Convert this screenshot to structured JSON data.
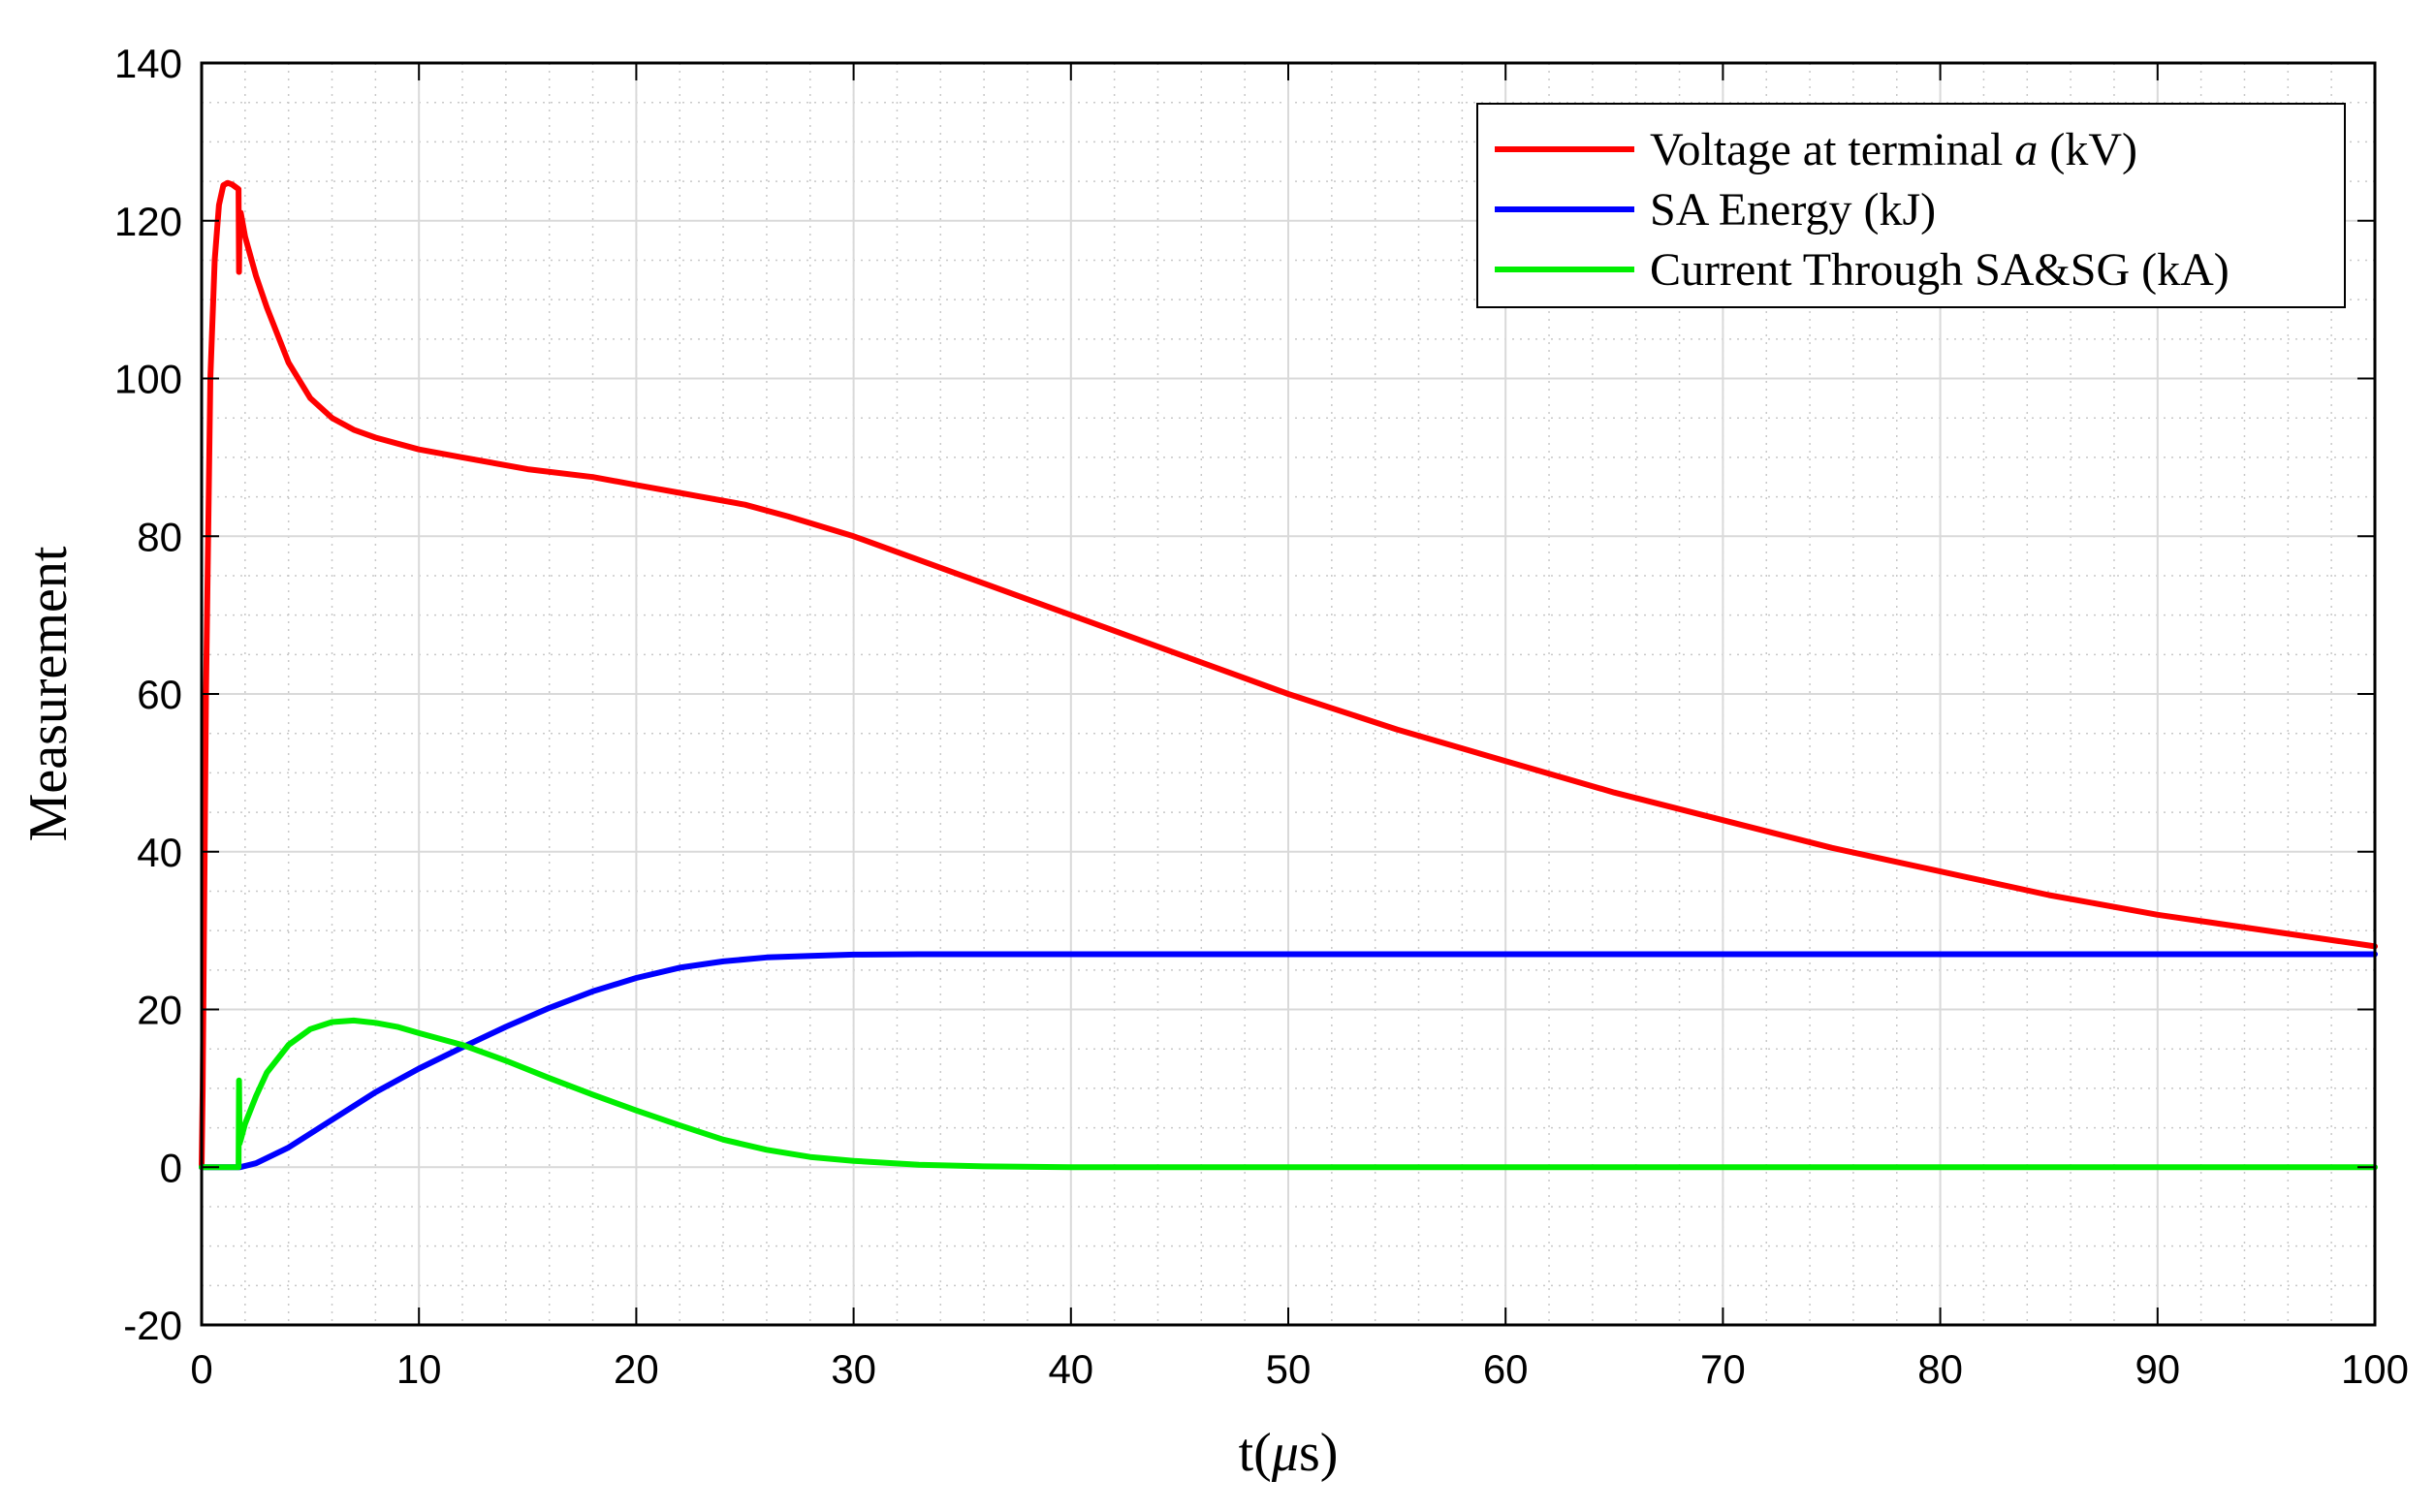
{
  "chart_data": {
    "type": "line",
    "xlabel": "t(μs)",
    "xlabel_parts": {
      "prefix": "t(",
      "mu": "μ",
      "suffix": "s)"
    },
    "ylabel": "Measurement",
    "xlim": [
      0,
      100
    ],
    "ylim": [
      -20,
      140
    ],
    "xticks": [
      0,
      10,
      20,
      30,
      40,
      50,
      60,
      70,
      80,
      90,
      100
    ],
    "yticks": [
      -20,
      0,
      20,
      40,
      60,
      80,
      100,
      120,
      140
    ],
    "grid": true,
    "minor_grid": true,
    "legend_position": "top-right",
    "series": [
      {
        "name": "Voltage at terminal a (kV)",
        "name_parts": {
          "prefix": "Voltage at terminal ",
          "italic": "a",
          "suffix": " (kV)"
        },
        "color": "#ff0000",
        "x": [
          0,
          0.05,
          0.2,
          0.4,
          0.6,
          0.8,
          1.0,
          1.2,
          1.4,
          1.6,
          1.7,
          1.72,
          1.75,
          1.8,
          2.0,
          2.5,
          3,
          4,
          5,
          6,
          7,
          8,
          10,
          12,
          15,
          18,
          20,
          22,
          25,
          27,
          30,
          35,
          40,
          45,
          50,
          55,
          60,
          65,
          70,
          75,
          80,
          85,
          90,
          95,
          100
        ],
        "y": [
          0,
          10,
          60,
          100,
          115,
          122,
          124.5,
          124.8,
          124.6,
          124.2,
          124,
          113.5,
          121,
          121,
          118,
          113,
          109,
          102,
          97.5,
          95,
          93.5,
          92.5,
          91,
          90,
          88.5,
          87.5,
          86.5,
          85.5,
          84,
          82.5,
          80,
          75,
          70,
          65,
          60,
          55.5,
          51.5,
          47.5,
          44,
          40.5,
          37.5,
          34.5,
          32,
          30,
          28
        ]
      },
      {
        "name": "SA Energy (kJ)",
        "color": "#0000ff",
        "x": [
          0,
          1.75,
          2.5,
          4,
          6,
          8,
          10,
          12,
          14,
          16,
          18,
          20,
          22,
          24,
          26,
          28,
          30,
          33,
          36,
          40,
          50,
          60,
          70,
          80,
          90,
          100
        ],
        "y": [
          0,
          0,
          0.5,
          2.5,
          6,
          9.5,
          12.5,
          15.2,
          17.8,
          20.2,
          22.3,
          24,
          25.3,
          26.1,
          26.6,
          26.8,
          26.95,
          27,
          27,
          27,
          27,
          27,
          27,
          27,
          27,
          27
        ]
      },
      {
        "name": "Current Through SA&SG (kA)",
        "color": "#00ee00",
        "x": [
          0,
          1.7,
          1.72,
          1.75,
          1.8,
          2.0,
          2.5,
          3,
          4,
          5,
          6,
          7,
          8,
          9,
          10,
          12,
          14,
          16,
          18,
          20,
          22,
          24,
          26,
          28,
          30,
          33,
          36,
          40,
          50,
          60,
          70,
          80,
          90,
          100
        ],
        "y": [
          0,
          0,
          11,
          3,
          3.5,
          5.5,
          9,
          12,
          15.5,
          17.5,
          18.4,
          18.6,
          18.3,
          17.8,
          17,
          15.5,
          13.5,
          11.3,
          9.2,
          7.2,
          5.3,
          3.5,
          2.2,
          1.3,
          0.8,
          0.3,
          0.1,
          0,
          0,
          0,
          0,
          0,
          0,
          0
        ]
      }
    ]
  }
}
